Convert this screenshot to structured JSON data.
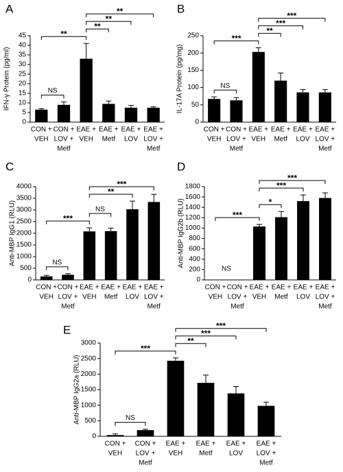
{
  "chart_data": [
    {
      "type": "bar",
      "panel": "A",
      "ylabel": "IFN-γ Protein (pg/ml)",
      "categories": [
        [
          "CON +",
          "VEH"
        ],
        [
          "CON +",
          "LOV +",
          "Metf"
        ],
        [
          "EAE +",
          "VEH"
        ],
        [
          "EAE +",
          "Metf"
        ],
        [
          "EAE +",
          "LOV"
        ],
        [
          "EAE +",
          "LOV +",
          "Metf"
        ]
      ],
      "values": [
        6.5,
        9,
        33,
        9.5,
        7.5,
        7.5
      ],
      "errors": [
        0.5,
        1.5,
        8,
        1.5,
        1.2,
        0.5
      ],
      "color": "#000000",
      "ylim": [
        0,
        45
      ],
      "yticks": [
        0,
        5,
        10,
        15,
        20,
        25,
        30,
        35,
        40,
        45
      ],
      "brackets": [
        {
          "from": 0,
          "to": 1,
          "label": "NS"
        },
        {
          "from": 0,
          "to": 2,
          "label": "**"
        },
        {
          "from": 2,
          "to": 3,
          "label": "**"
        },
        {
          "from": 2,
          "to": 4,
          "label": "**"
        },
        {
          "from": 2,
          "to": 5,
          "label": "**"
        }
      ]
    },
    {
      "type": "bar",
      "panel": "B",
      "ylabel": "IL-17A Protein (pg/mg)",
      "categories": [
        [
          "CON +",
          "VEH"
        ],
        [
          "CON +",
          "LOV +",
          "Metf"
        ],
        [
          "EAE +",
          "VEH"
        ],
        [
          "EAE +",
          "Metf"
        ],
        [
          "EAE +",
          "LOV"
        ],
        [
          "EAE +",
          "LOV +",
          "Metf"
        ]
      ],
      "values": [
        67,
        63,
        203,
        120,
        86,
        86
      ],
      "errors": [
        6,
        8,
        12,
        22,
        8,
        8
      ],
      "color": "#000000",
      "ylim": [
        0,
        250
      ],
      "yticks": [
        0,
        50,
        100,
        150,
        200,
        250
      ],
      "brackets": [
        {
          "from": 0,
          "to": 1,
          "label": "NS"
        },
        {
          "from": 0,
          "to": 2,
          "label": "***"
        },
        {
          "from": 2,
          "to": 3,
          "label": "**"
        },
        {
          "from": 2,
          "to": 4,
          "label": "***"
        },
        {
          "from": 2,
          "to": 5,
          "label": "***"
        }
      ]
    },
    {
      "type": "bar",
      "panel": "C",
      "ylabel": "Anti-MBP IgG1 (RLU)",
      "categories": [
        [
          "CON +",
          "VEH"
        ],
        [
          "CON +",
          "LOV +",
          "Metf"
        ],
        [
          "EAE +",
          "VEH"
        ],
        [
          "EAE +",
          "Metf"
        ],
        [
          "EAE +",
          "LOV"
        ],
        [
          "EAE +",
          "LOV +",
          "Metf"
        ]
      ],
      "values": [
        150,
        220,
        2080,
        2090,
        3030,
        3340
      ],
      "errors": [
        50,
        50,
        150,
        130,
        350,
        330
      ],
      "color": "#000000",
      "ylim": [
        0,
        4000
      ],
      "yticks": [
        0,
        500,
        1000,
        1500,
        2000,
        2500,
        3000,
        3500,
        4000
      ],
      "brackets": [
        {
          "from": 0,
          "to": 1,
          "label": "NS"
        },
        {
          "from": 0,
          "to": 2,
          "label": "***"
        },
        {
          "from": 2,
          "to": 3,
          "label": "NS"
        },
        {
          "from": 2,
          "to": 4,
          "label": "**"
        },
        {
          "from": 2,
          "to": 5,
          "label": "***"
        }
      ]
    },
    {
      "type": "bar",
      "panel": "D",
      "ylabel": "Anti-MBP IgG2b (RLU)",
      "categories": [
        [
          "CON +",
          "VEH"
        ],
        [
          "CON +",
          "LOV +",
          "Metf"
        ],
        [
          "EAE +",
          "VEH"
        ],
        [
          "EAE +",
          "Metf"
        ],
        [
          "EAE +",
          "LOV"
        ],
        [
          "EAE +",
          "LOV +",
          "Metf"
        ]
      ],
      "values": [
        0,
        0,
        1030,
        1210,
        1520,
        1580
      ],
      "errors": [
        0,
        0,
        40,
        110,
        120,
        100
      ],
      "color": "#000000",
      "ylim": [
        0,
        1800
      ],
      "yticks": [
        0,
        200,
        400,
        600,
        800,
        1000,
        1200,
        1400,
        1600,
        1800
      ],
      "brackets": [
        {
          "from": 0,
          "to": 1,
          "label": "NS",
          "line": false
        },
        {
          "from": 0,
          "to": 2,
          "label": "***"
        },
        {
          "from": 2,
          "to": 3,
          "label": "*"
        },
        {
          "from": 2,
          "to": 4,
          "label": "***"
        },
        {
          "from": 2,
          "to": 5,
          "label": "***"
        }
      ]
    },
    {
      "type": "bar",
      "panel": "E",
      "ylabel": "Anti-MBP IgG2a (RLU)",
      "categories": [
        [
          "CON +",
          "VEH"
        ],
        [
          "CON +",
          "LOV +",
          "Metf"
        ],
        [
          "EAE +",
          "VEH"
        ],
        [
          "EAE +",
          "Metf"
        ],
        [
          "EAE +",
          "LOV"
        ],
        [
          "EAE +",
          "LOV +",
          "Metf"
        ]
      ],
      "values": [
        40,
        200,
        2430,
        1720,
        1380,
        980
      ],
      "errors": [
        40,
        30,
        90,
        250,
        220,
        120
      ],
      "color": "#000000",
      "ylim": [
        0,
        3000
      ],
      "yticks": [
        0,
        500,
        1000,
        1500,
        2000,
        2500,
        3000
      ],
      "brackets": [
        {
          "from": 0,
          "to": 1,
          "label": "NS"
        },
        {
          "from": 0,
          "to": 2,
          "label": "***"
        },
        {
          "from": 2,
          "to": 3,
          "label": "**"
        },
        {
          "from": 2,
          "to": 4,
          "label": "***"
        },
        {
          "from": 2,
          "to": 5,
          "label": "***"
        }
      ]
    }
  ]
}
